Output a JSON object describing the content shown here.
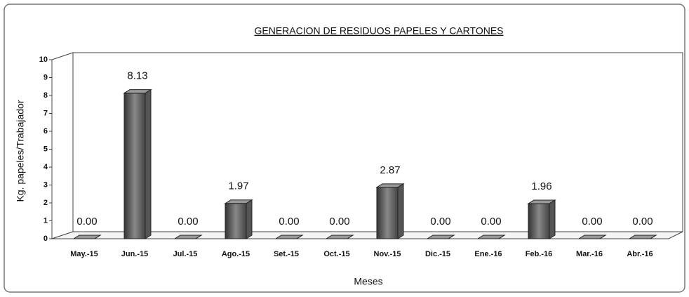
{
  "chart_data": {
    "type": "bar",
    "title": "GENERACION DE RESIDUOS PAPELES Y CARTONES",
    "x_label": "Meses",
    "y_label": "Kg. papeles/Trabajador",
    "categories": [
      "May.-15",
      "Jun.-15",
      "Jul.-15",
      "Ago.-15",
      "Set.-15",
      "Oct.-15",
      "Nov.-15",
      "Dic.-15",
      "Ene.-16",
      "Feb.-16",
      "Mar.-16",
      "Abr.-16"
    ],
    "values": [
      0,
      8.13,
      0,
      1.97,
      0,
      0,
      2.87,
      0,
      0,
      1.96,
      0,
      0
    ],
    "value_labels": [
      "0.00",
      "8.13",
      "0.00",
      "1.97",
      "0.00",
      "0.00",
      "2.87",
      "0.00",
      "0.00",
      "1.96",
      "0.00",
      "0.00"
    ],
    "color": "#555555",
    "ylim": [
      0,
      10
    ],
    "yticks": [
      0,
      1,
      2,
      3,
      4,
      5,
      6,
      7,
      8,
      9,
      10
    ],
    "grid": false
  }
}
